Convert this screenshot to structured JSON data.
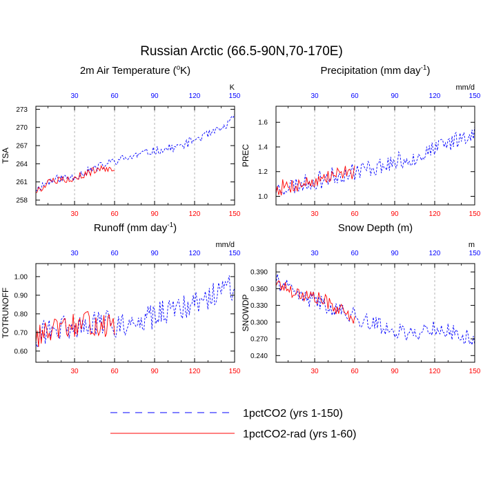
{
  "figure": {
    "title": "Russian Arctic (66.5-90N,70-170E)",
    "colors": {
      "series1": "#0000ff",
      "series2": "#ff0000",
      "axis": "#000000",
      "grid": "#a0a0a0"
    }
  },
  "legend": [
    {
      "label": "1pctCO2 (yrs 1-150)",
      "style": "dashed",
      "color": "#0000ff"
    },
    {
      "label": "1pctCO2-rad (yrs 1-60)",
      "style": "solid",
      "color": "#ff0000"
    }
  ],
  "chart_data": [
    {
      "type": "line",
      "title": "2m Air Temperature (",
      "title_sup": "o",
      "title_end": "K)",
      "ylabel": "TSA",
      "top_unit": "K",
      "xlim": [
        1,
        150
      ],
      "ylim": [
        257.2,
        273.5
      ],
      "yticks": [
        258,
        261,
        264,
        267,
        270,
        273
      ],
      "ytick_labels": [
        "258",
        "261",
        "264",
        "267",
        "270",
        "273"
      ],
      "xticks": [
        30,
        60,
        90,
        120,
        150
      ],
      "series": [
        {
          "key": "1pctCO2",
          "keypoints": [
            [
              1,
              259.8
            ],
            [
              10,
              261.0
            ],
            [
              20,
              261.6
            ],
            [
              30,
              261.9
            ],
            [
              40,
              262.8
            ],
            [
              50,
              263.6
            ],
            [
              60,
              264.5
            ],
            [
              70,
              265.0
            ],
            [
              80,
              265.6
            ],
            [
              90,
              266.2
            ],
            [
              100,
              266.5
            ],
            [
              110,
              266.9
            ],
            [
              120,
              268.0
            ],
            [
              130,
              268.8
            ],
            [
              140,
              269.6
            ],
            [
              145,
              270.6
            ],
            [
              150,
              271.6
            ]
          ],
          "amp": 0.9,
          "seed": 11
        },
        {
          "key": "1pctCO2-rad",
          "keypoints": [
            [
              1,
              259.5
            ],
            [
              10,
              260.8
            ],
            [
              20,
              261.3
            ],
            [
              30,
              261.8
            ],
            [
              40,
              262.4
            ],
            [
              50,
              263.3
            ],
            [
              60,
              263.2
            ]
          ],
          "amp": 0.8,
          "seed": 5
        }
      ]
    },
    {
      "type": "line",
      "title": "Precipitation (mm day",
      "title_sup": "-1",
      "title_end": ")",
      "ylabel": "PREC",
      "top_unit": "mm/d",
      "xlim": [
        1,
        150
      ],
      "ylim": [
        0.93,
        1.73
      ],
      "yticks": [
        1.0,
        1.2,
        1.4,
        1.6
      ],
      "ytick_labels": [
        "1.0",
        "1.2",
        "1.4",
        "1.6"
      ],
      "xticks": [
        30,
        60,
        90,
        120,
        150
      ],
      "series": [
        {
          "key": "1pctCO2",
          "keypoints": [
            [
              1,
              1.06
            ],
            [
              20,
              1.1
            ],
            [
              40,
              1.15
            ],
            [
              60,
              1.2
            ],
            [
              80,
              1.25
            ],
            [
              100,
              1.3
            ],
            [
              120,
              1.38
            ],
            [
              140,
              1.48
            ],
            [
              150,
              1.53
            ]
          ],
          "amp": 0.09,
          "seed": 23
        },
        {
          "key": "1pctCO2-rad",
          "keypoints": [
            [
              1,
              1.06
            ],
            [
              20,
              1.1
            ],
            [
              40,
              1.15
            ],
            [
              50,
              1.2
            ],
            [
              60,
              1.19
            ]
          ],
          "amp": 0.08,
          "seed": 7
        }
      ]
    },
    {
      "type": "line",
      "title": "Runoff (mm day",
      "title_sup": "-1",
      "title_end": ")",
      "ylabel": "TOTRUNOFF",
      "top_unit": "mm/d",
      "xlim": [
        1,
        150
      ],
      "ylim": [
        0.54,
        1.07
      ],
      "yticks": [
        0.6,
        0.7,
        0.8,
        0.9,
        1.0
      ],
      "ytick_labels": [
        "0.60",
        "0.70",
        "0.80",
        "0.90",
        "1.00"
      ],
      "xticks": [
        30,
        60,
        90,
        120,
        150
      ],
      "series": [
        {
          "key": "1pctCO2",
          "keypoints": [
            [
              1,
              0.69
            ],
            [
              20,
              0.72
            ],
            [
              40,
              0.74
            ],
            [
              60,
              0.75
            ],
            [
              80,
              0.77
            ],
            [
              100,
              0.8
            ],
            [
              120,
              0.86
            ],
            [
              140,
              0.92
            ],
            [
              150,
              0.95
            ]
          ],
          "amp": 0.09,
          "seed": 31
        },
        {
          "key": "1pctCO2-rad",
          "keypoints": [
            [
              1,
              0.68
            ],
            [
              20,
              0.72
            ],
            [
              40,
              0.75
            ],
            [
              60,
              0.73
            ]
          ],
          "amp": 0.08,
          "seed": 13
        }
      ]
    },
    {
      "type": "line",
      "title": "Snow Depth (m)",
      "title_sup": "",
      "title_end": "",
      "ylabel": "SNOWDP",
      "top_unit": "m",
      "xlim": [
        1,
        150
      ],
      "ylim": [
        0.228,
        0.405
      ],
      "yticks": [
        0.24,
        0.27,
        0.3,
        0.33,
        0.36,
        0.39
      ],
      "ytick_labels": [
        "0.240",
        "0.270",
        "0.300",
        "0.330",
        "0.360",
        "0.390"
      ],
      "xticks": [
        30,
        60,
        90,
        120,
        150
      ],
      "series": [
        {
          "key": "1pctCO2",
          "keypoints": [
            [
              1,
              0.375
            ],
            [
              10,
              0.36
            ],
            [
              20,
              0.345
            ],
            [
              30,
              0.34
            ],
            [
              40,
              0.33
            ],
            [
              50,
              0.32
            ],
            [
              60,
              0.31
            ],
            [
              70,
              0.3
            ],
            [
              80,
              0.293
            ],
            [
              90,
              0.285
            ],
            [
              100,
              0.28
            ],
            [
              110,
              0.283
            ],
            [
              120,
              0.29
            ],
            [
              130,
              0.283
            ],
            [
              140,
              0.275
            ],
            [
              150,
              0.27
            ]
          ],
          "amp": 0.018,
          "seed": 41
        },
        {
          "key": "1pctCO2-rad",
          "keypoints": [
            [
              1,
              0.372
            ],
            [
              10,
              0.36
            ],
            [
              20,
              0.35
            ],
            [
              30,
              0.345
            ],
            [
              40,
              0.335
            ],
            [
              50,
              0.32
            ],
            [
              60,
              0.305
            ]
          ],
          "amp": 0.016,
          "seed": 17
        }
      ]
    }
  ]
}
